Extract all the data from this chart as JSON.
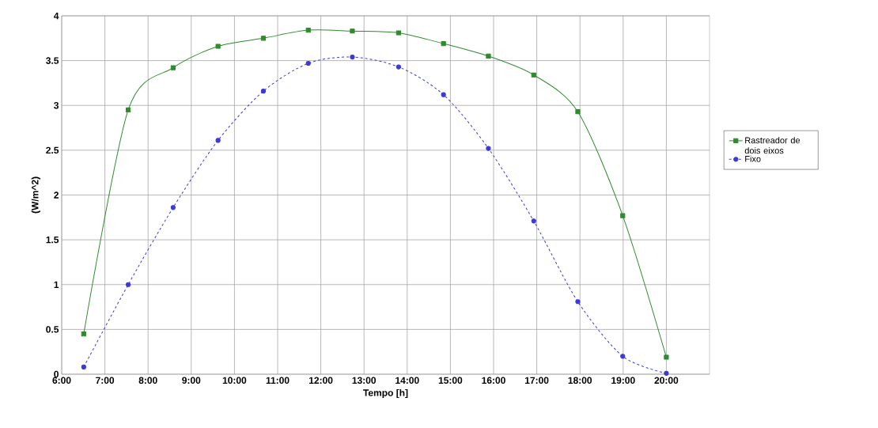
{
  "chart_data": {
    "type": "line",
    "xlabel": "Tempo [h]",
    "ylabel": "(W/m^2)",
    "xlim": [
      6,
      21
    ],
    "ylim": [
      0,
      4
    ],
    "xticks": [
      {
        "value": 6,
        "label": "6:00"
      },
      {
        "value": 7,
        "label": "7:00"
      },
      {
        "value": 8,
        "label": "8:00"
      },
      {
        "value": 9,
        "label": "9:00"
      },
      {
        "value": 10,
        "label": "10:00"
      },
      {
        "value": 11,
        "label": "11:00"
      },
      {
        "value": 12,
        "label": "12:00"
      },
      {
        "value": 13,
        "label": "13:00"
      },
      {
        "value": 14,
        "label": "14:00"
      },
      {
        "value": 15,
        "label": "15:00"
      },
      {
        "value": 16,
        "label": "16:00"
      },
      {
        "value": 17,
        "label": "17:00"
      },
      {
        "value": 18,
        "label": "18:00"
      },
      {
        "value": 19,
        "label": "19:00"
      },
      {
        "value": 20,
        "label": "20:00"
      }
    ],
    "yticks": [
      0,
      0.5,
      1,
      1.5,
      2,
      2.5,
      3,
      3.5,
      4
    ],
    "x": [
      6.51,
      7.54,
      8.58,
      9.62,
      10.67,
      11.71,
      12.73,
      13.8,
      14.84,
      15.88,
      16.93,
      17.95,
      18.99,
      20.0
    ],
    "grid": true,
    "legend": "right",
    "series": [
      {
        "name": "Rastreador de dois eixos",
        "color": "#2e8b2e",
        "marker": "square",
        "line_style": "solid",
        "values": [
          0.45,
          2.95,
          3.42,
          3.66,
          3.75,
          3.84,
          3.83,
          3.81,
          3.69,
          3.55,
          3.34,
          2.93,
          1.77,
          0.19
        ]
      },
      {
        "name": "Fixo",
        "color": "#3a3ad6",
        "marker": "circle",
        "line_style": "dashed",
        "values": [
          0.08,
          1.0,
          1.86,
          2.61,
          3.16,
          3.47,
          3.54,
          3.43,
          3.12,
          2.52,
          1.71,
          0.81,
          0.2,
          0.01
        ]
      }
    ]
  }
}
